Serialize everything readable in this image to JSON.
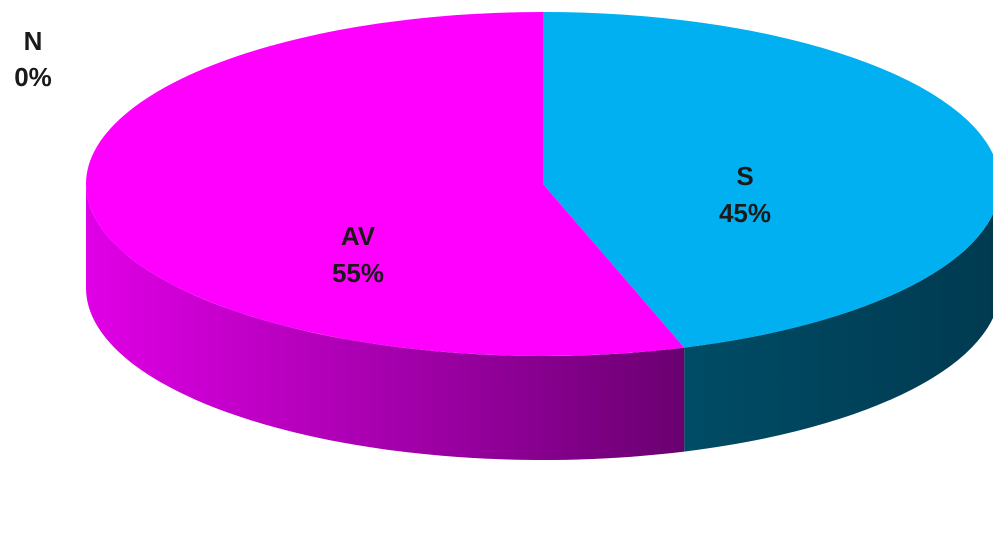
{
  "chart_data": {
    "type": "pie",
    "style": "3d",
    "slices": [
      {
        "label": "N",
        "value": 0,
        "value_label": "0%",
        "color": "#1f4e79"
      },
      {
        "label": "S",
        "value": 45,
        "value_label": "45%",
        "color": "#00b0f0"
      },
      {
        "label": "AV",
        "value": 55,
        "value_label": "55%",
        "color": "#ff00ff"
      }
    ]
  }
}
